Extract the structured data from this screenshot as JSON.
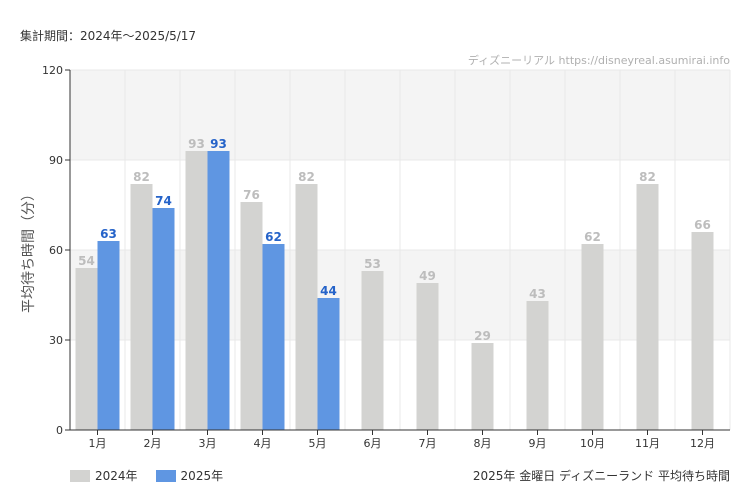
{
  "header": {
    "period": "集計期間：2024年～2025/5/17",
    "source": "ディズニーリアル https://disneyreal.asumirai.info"
  },
  "footer": {
    "subtitle": "2025年 金曜日 ディズニーランド 平均待ち時間"
  },
  "colors": {
    "series_2024": "#d3d3d1",
    "series_2025": "#5f96e2",
    "label_2024": "#bdbdbd",
    "label_2025": "#2563c9",
    "band": "#f4f4f4"
  },
  "chart_data": {
    "type": "bar",
    "title": "",
    "xlabel": "",
    "ylabel": "平均待ち時間（分）",
    "ylim": [
      0,
      120
    ],
    "yticks": [
      0,
      30,
      60,
      90,
      120
    ],
    "categories": [
      "1月",
      "2月",
      "3月",
      "4月",
      "5月",
      "6月",
      "7月",
      "8月",
      "9月",
      "10月",
      "11月",
      "12月"
    ],
    "series": [
      {
        "name": "2024年",
        "values": [
          54,
          82,
          93,
          76,
          82,
          53,
          49,
          29,
          43,
          62,
          82,
          66
        ]
      },
      {
        "name": "2025年",
        "values": [
          63,
          74,
          93,
          62,
          44,
          null,
          null,
          null,
          null,
          null,
          null,
          null
        ]
      }
    ],
    "legend": "bottom-left",
    "grid": true
  }
}
